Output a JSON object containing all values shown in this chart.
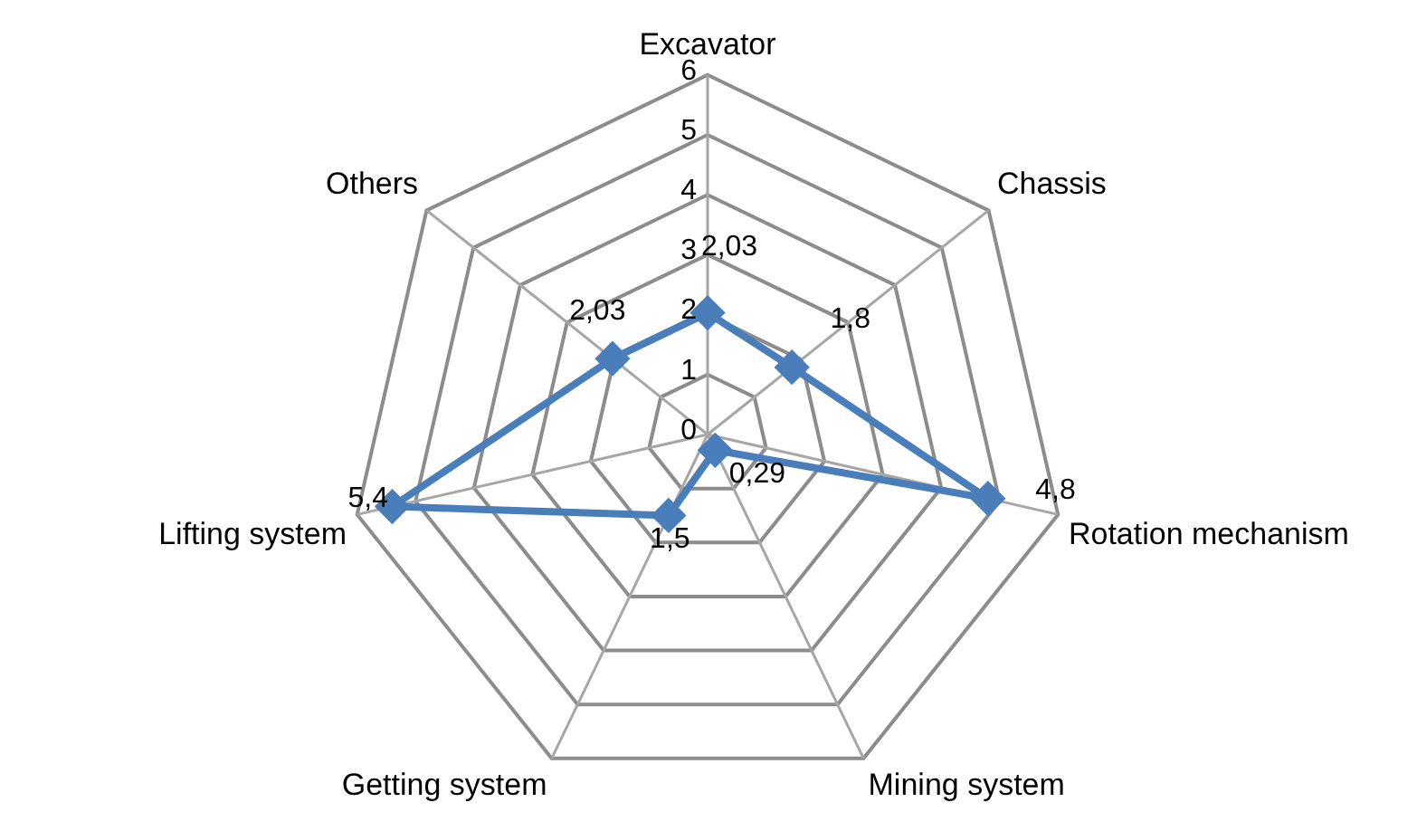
{
  "chart_data": {
    "type": "radar",
    "categories": [
      "Excavator",
      "Chassis",
      "Rotation mechanism",
      "Mining system",
      "Getting system",
      "Lifting system",
      "Others"
    ],
    "series": [
      {
        "color": "#4a7ebb",
        "values": [
          2.03,
          1.8,
          4.8,
          0.29,
          1.5,
          5.4,
          2.03
        ],
        "value_labels": [
          "2,03",
          "1,8",
          "4,8",
          "0,29",
          "1,5",
          "5,4",
          "2,03"
        ]
      }
    ],
    "ylim": [
      0,
      6
    ],
    "yticks": [
      0,
      1,
      2,
      3,
      4,
      5,
      6
    ],
    "grid": true,
    "marker": "diamond",
    "legend": false
  }
}
